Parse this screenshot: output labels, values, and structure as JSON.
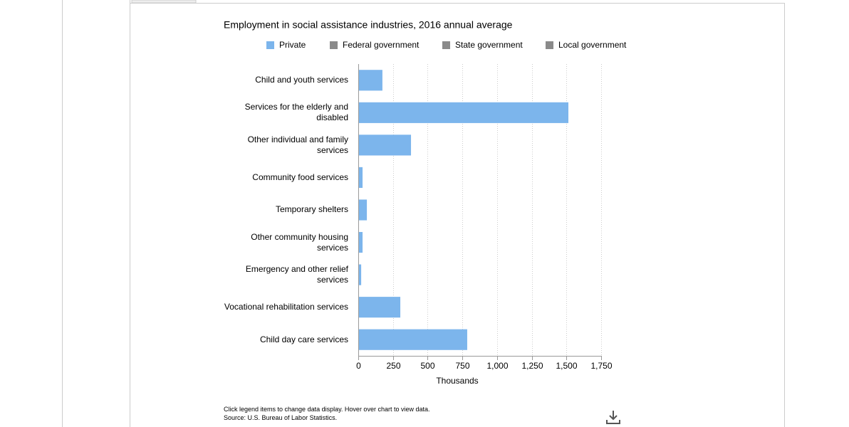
{
  "chart_data": {
    "type": "bar",
    "orientation": "horizontal",
    "title": "Employment in social assistance industries, 2016 annual average",
    "categories": [
      "Child and youth services",
      "Services for the elderly and disabled",
      "Other individual and family services",
      "Community food services",
      "Temporary shelters",
      "Other community housing services",
      "Emergency and other relief services",
      "Vocational rehabilitation services",
      "Child day care services"
    ],
    "series": [
      {
        "name": "Private",
        "color": "#7cb5ec",
        "values": [
          174,
          1514,
          380,
          31,
          62,
          31,
          21,
          303,
          785
        ]
      }
    ],
    "hidden_series": [
      {
        "name": "Federal government",
        "color": "#8a8a8a"
      },
      {
        "name": "State government",
        "color": "#8a8a8a"
      },
      {
        "name": "Local government",
        "color": "#8a8a8a"
      }
    ],
    "xlabel": "Thousands",
    "xlim": [
      0,
      1750
    ],
    "xticks": [
      0,
      250,
      500,
      750,
      {
        "value": 1000,
        "label": "1,000"
      },
      {
        "value": 1250,
        "label": "1,250"
      },
      {
        "value": 1500,
        "label": "1,500"
      },
      {
        "value": 1750,
        "label": "1,750"
      }
    ],
    "grid": true,
    "notes": [
      "Click legend items to change data display. Hover over chart to view data.",
      "Source: U.S. Bureau of Labor Statistics."
    ]
  }
}
